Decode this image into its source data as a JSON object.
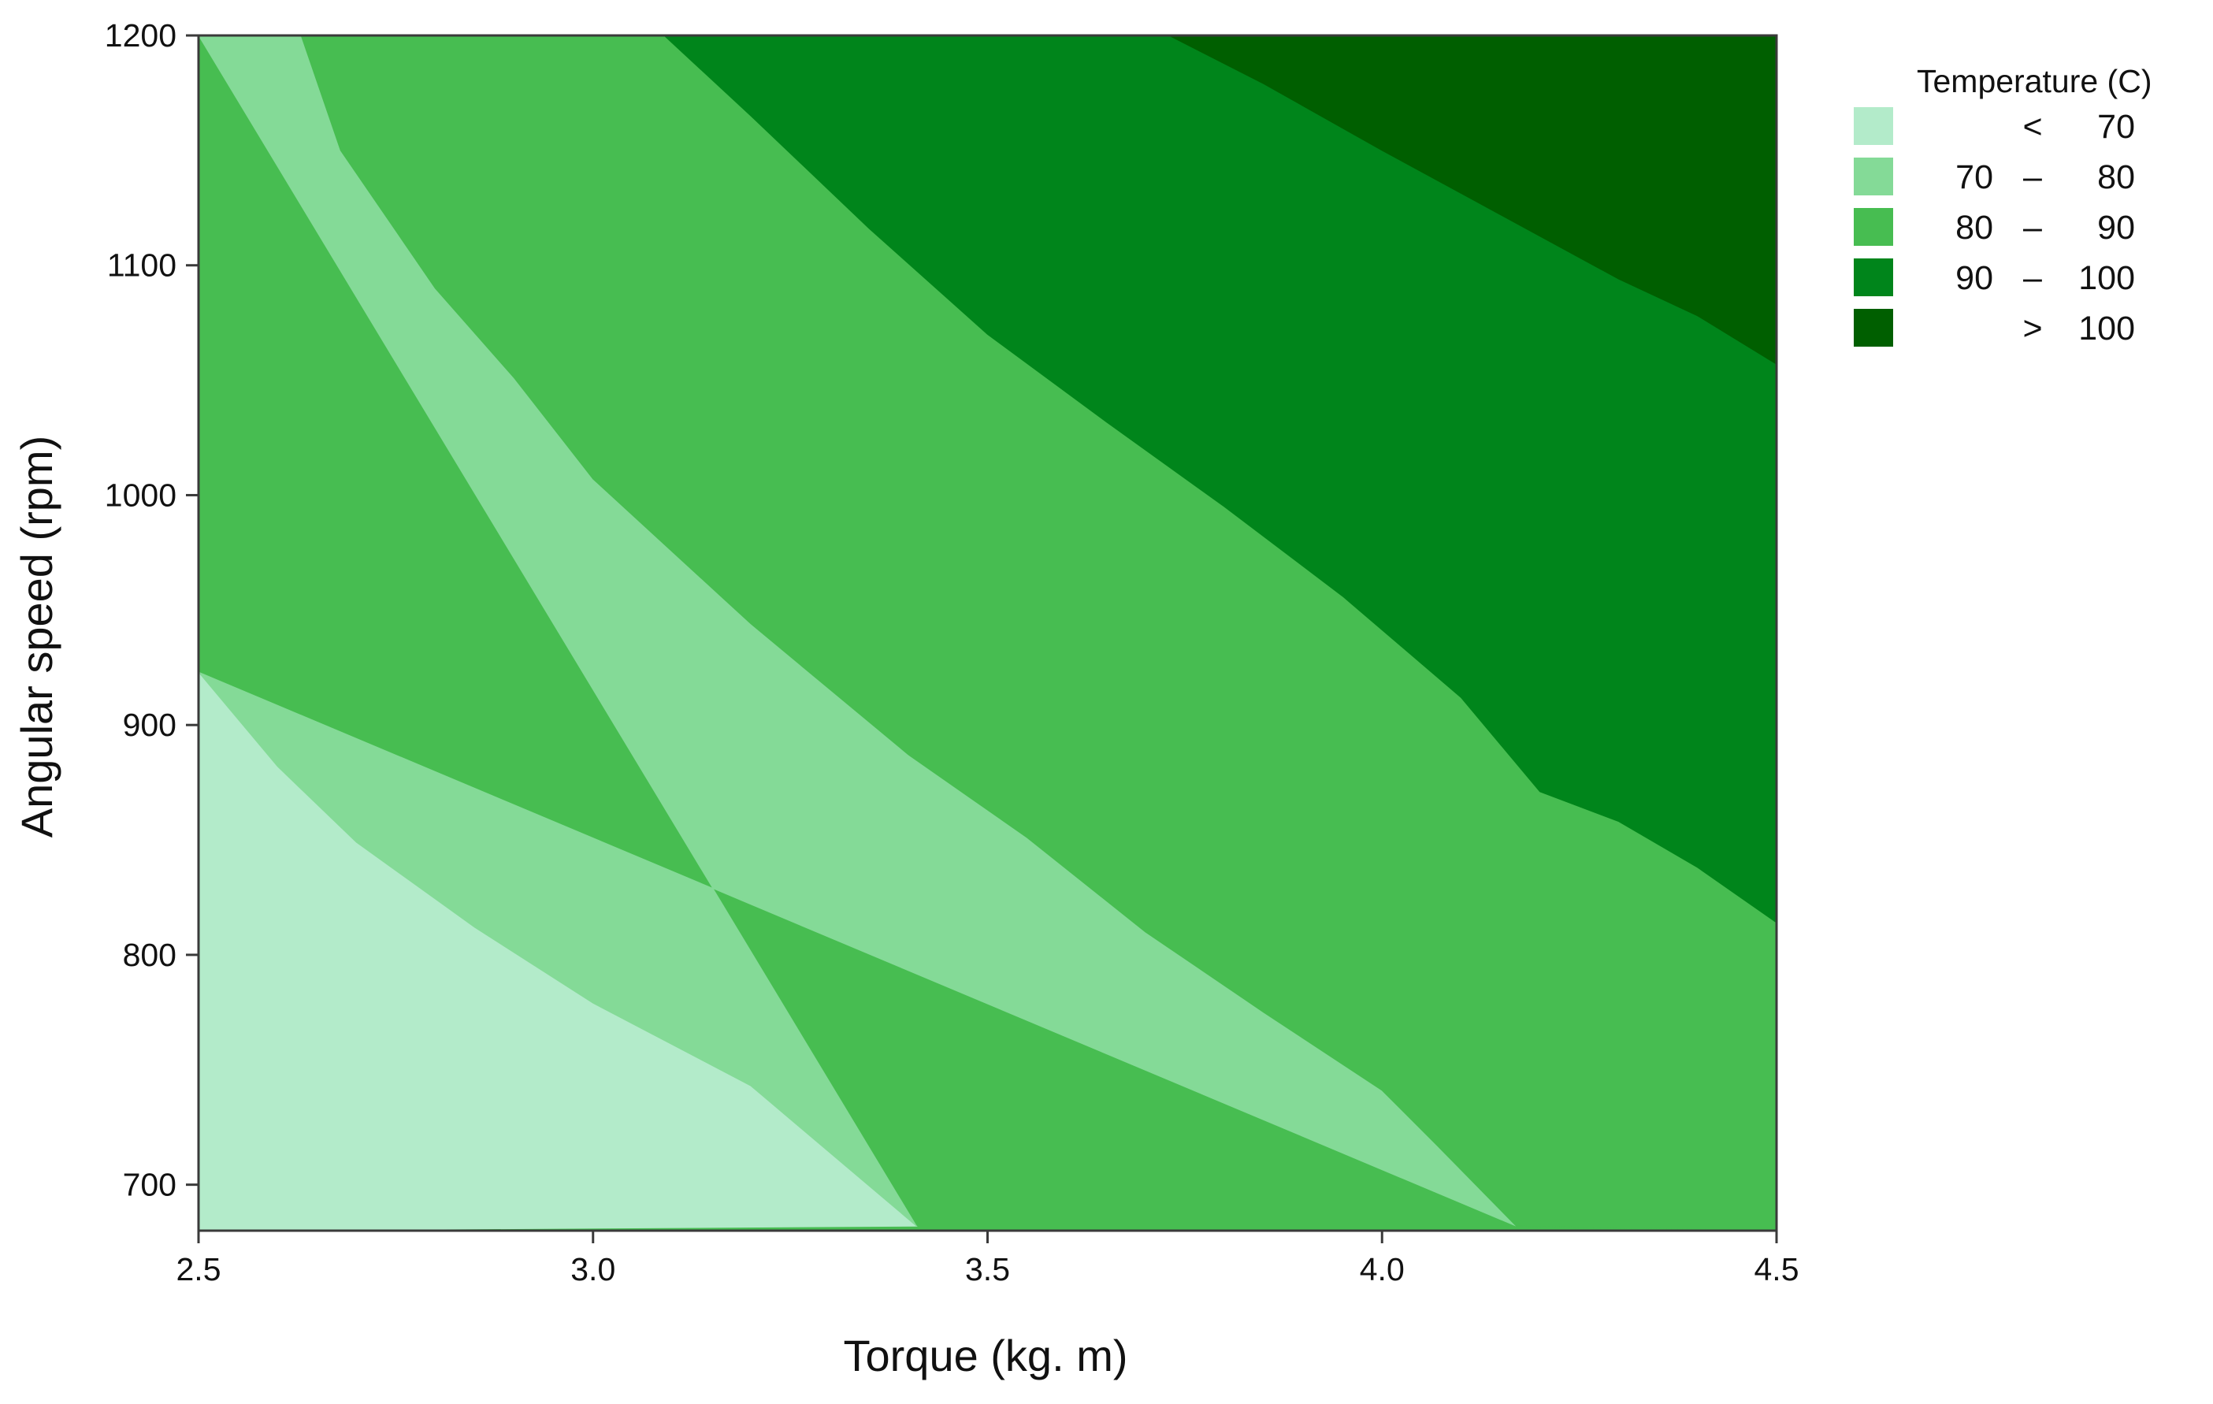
{
  "chart_data": {
    "type": "contour",
    "xlabel": "Torque (kg. m)",
    "ylabel": "Angular speed (rpm)",
    "xlim": [
      2.5,
      4.5
    ],
    "ylim": [
      680,
      1200
    ],
    "x_ticks": [
      "2.5",
      "3.0",
      "3.5",
      "4.0",
      "4.5"
    ],
    "y_ticks": [
      "700",
      "800",
      "900",
      "1000",
      "1100",
      "1200"
    ],
    "legend": {
      "title": "Temperature (C)",
      "position": "top-right, outside plot",
      "levels": [
        {
          "low": "",
          "sep": "<",
          "high": "70",
          "color": "#b3ebca"
        },
        {
          "low": "70",
          "sep": "–",
          "high": "80",
          "color": "#84da97"
        },
        {
          "low": "80",
          "sep": "–",
          "high": "90",
          "color": "#47bd51"
        },
        {
          "low": "90",
          "sep": "–",
          "high": "100",
          "color": "#00851b"
        },
        {
          "low": "",
          "sep": ">",
          "high": "100",
          "color": "#005f00"
        }
      ]
    },
    "contours": [
      {
        "level": 70,
        "points": [
          [
            2.5,
            923
          ],
          [
            2.6,
            882
          ],
          [
            2.7,
            849
          ],
          [
            2.85,
            812
          ],
          [
            3.0,
            779
          ],
          [
            3.2,
            743
          ],
          [
            3.41,
            682
          ]
        ]
      },
      {
        "level": 80,
        "points": [
          [
            2.63,
            1200
          ],
          [
            2.68,
            1150
          ],
          [
            2.8,
            1090
          ],
          [
            2.9,
            1051
          ],
          [
            3.0,
            1007
          ],
          [
            3.2,
            944
          ],
          [
            3.4,
            887
          ],
          [
            3.55,
            851
          ],
          [
            3.7,
            810
          ],
          [
            3.85,
            775
          ],
          [
            4.0,
            741
          ],
          [
            4.07,
            717
          ],
          [
            4.17,
            682
          ]
        ]
      },
      {
        "level": 90,
        "points": [
          [
            3.09,
            1200
          ],
          [
            3.2,
            1165
          ],
          [
            3.35,
            1116
          ],
          [
            3.5,
            1070
          ],
          [
            3.65,
            1032
          ],
          [
            3.8,
            995
          ],
          [
            3.95,
            956
          ],
          [
            4.1,
            912
          ],
          [
            4.2,
            871
          ],
          [
            4.3,
            858
          ],
          [
            4.4,
            838
          ],
          [
            4.5,
            814
          ]
        ]
      },
      {
        "level": 100,
        "points": [
          [
            3.73,
            1200
          ],
          [
            3.85,
            1179
          ],
          [
            4.0,
            1150
          ],
          [
            4.15,
            1122
          ],
          [
            4.3,
            1094
          ],
          [
            4.4,
            1078
          ],
          [
            4.5,
            1057
          ]
        ]
      }
    ],
    "grid": false
  }
}
